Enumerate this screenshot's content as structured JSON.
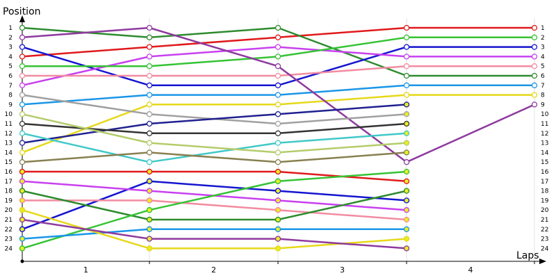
{
  "chart_data": {
    "type": "line",
    "ylabel": "Position",
    "xlabel": "Laps",
    "x": [
      0,
      1,
      2,
      3,
      4
    ],
    "x_tick_labels": [
      "1",
      "2",
      "3",
      "4"
    ],
    "y_ticks": [
      "1",
      "2",
      "3",
      "4",
      "5",
      "6",
      "7",
      "8",
      "9",
      "10",
      "11",
      "12",
      "13",
      "14",
      "15",
      "16",
      "17",
      "18",
      "19",
      "20",
      "21",
      "22",
      "23",
      "24"
    ],
    "ylim": [
      24,
      1
    ],
    "y_inverted": true,
    "grid": "vertical",
    "legend": "none",
    "series": [
      {
        "color": "#e0191b",
        "values": [
          4,
          3,
          2,
          1,
          1
        ]
      },
      {
        "color": "#2e8b2e",
        "values": [
          1,
          2,
          1,
          6,
          6
        ]
      },
      {
        "color": "#1515d0",
        "values": [
          3,
          7,
          7,
          3,
          3
        ]
      },
      {
        "color": "#c840f0",
        "values": [
          7,
          4,
          3,
          4,
          4
        ]
      },
      {
        "color": "#35c335",
        "values": [
          5,
          5,
          4,
          2,
          2
        ]
      },
      {
        "color": "#f28ca0",
        "values": [
          6,
          6,
          6,
          5,
          5
        ]
      },
      {
        "color": "#1a96e8",
        "values": [
          9,
          8,
          8,
          7,
          7
        ]
      },
      {
        "color": "#e6d81a",
        "values": [
          14,
          9,
          9,
          8,
          8
        ]
      },
      {
        "color": "#8e3a9e",
        "values": [
          2,
          1,
          5,
          15,
          9
        ]
      },
      {
        "color": "#a0a0a0",
        "values": [
          8,
          10,
          11,
          10,
          null
        ]
      },
      {
        "color": "#202090",
        "values": [
          13,
          11,
          10,
          9,
          null
        ]
      },
      {
        "color": "#333333",
        "values": [
          11,
          12,
          12,
          11,
          null
        ]
      },
      {
        "color": "#40c8c8",
        "values": [
          12,
          15,
          13,
          12,
          null
        ]
      },
      {
        "color": "#b4cc6a",
        "values": [
          10,
          13,
          14,
          13,
          null
        ]
      },
      {
        "color": "#888050",
        "values": [
          15,
          14,
          15,
          14,
          null
        ]
      },
      {
        "color": "#e0191b",
        "values": [
          16,
          16,
          16,
          17,
          null
        ]
      },
      {
        "color": "#1515d0",
        "values": [
          22,
          17,
          18,
          19,
          null
        ]
      },
      {
        "color": "#c840f0",
        "values": [
          17,
          18,
          19,
          20,
          null
        ]
      },
      {
        "color": "#f28ca0",
        "values": [
          19,
          19,
          20,
          21,
          null
        ]
      },
      {
        "color": "#2e8b2e",
        "values": [
          18,
          21,
          21,
          18,
          null
        ]
      },
      {
        "color": "#35c335",
        "values": [
          24,
          20,
          17,
          16,
          null
        ]
      },
      {
        "color": "#1a96e8",
        "values": [
          23,
          22,
          22,
          22,
          null
        ]
      },
      {
        "color": "#e6d81a",
        "values": [
          20,
          24,
          24,
          23,
          null
        ]
      },
      {
        "color": "#8e3a9e",
        "values": [
          21,
          23,
          23,
          24,
          null
        ]
      }
    ]
  }
}
